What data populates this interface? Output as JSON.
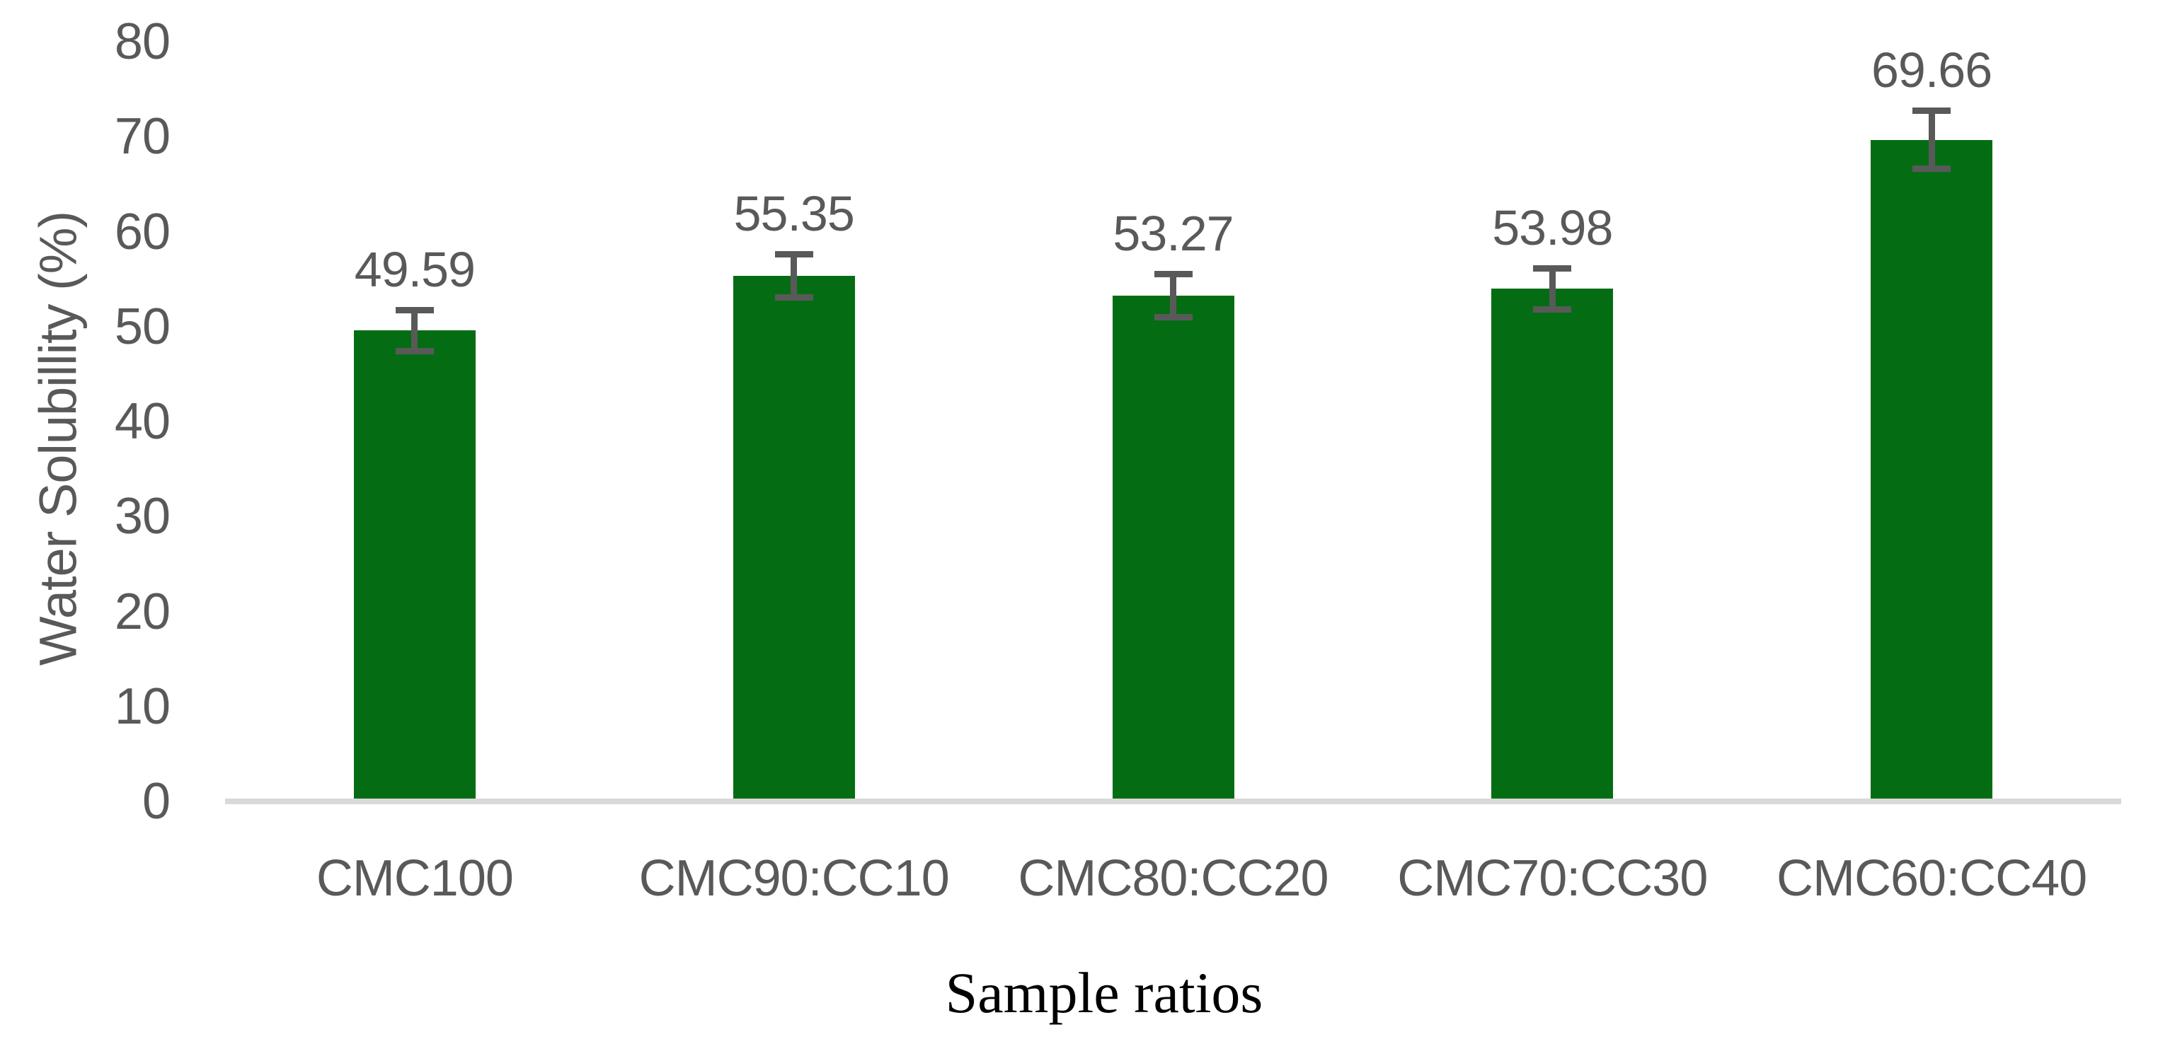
{
  "chart_data": {
    "type": "bar",
    "title": "",
    "categories": [
      "CMC100",
      "CMC90:CC10",
      "CMC80:CC20",
      "CMC70:CC30",
      "CMC60:CC40"
    ],
    "values": [
      49.59,
      55.35,
      53.27,
      53.98,
      69.66
    ],
    "data_labels": [
      "49.59",
      "55.35",
      "53.27",
      "53.98",
      "69.66"
    ],
    "error_bars": [
      2.5,
      2.6,
      2.6,
      2.5,
      3.4
    ],
    "xlabel": "Sample ratios",
    "ylabel": "Water Solubillity (%)",
    "ylim": [
      0,
      80
    ],
    "yticks": [
      0,
      10,
      20,
      30,
      40,
      50,
      60,
      70,
      80
    ],
    "grid": false,
    "legend": "none",
    "colors": {
      "bar": "#046D13",
      "error_bar": "#595959",
      "axis_text": "#595959",
      "axis_line": "#D9D9D9",
      "xlabel_text": "#000000"
    }
  }
}
